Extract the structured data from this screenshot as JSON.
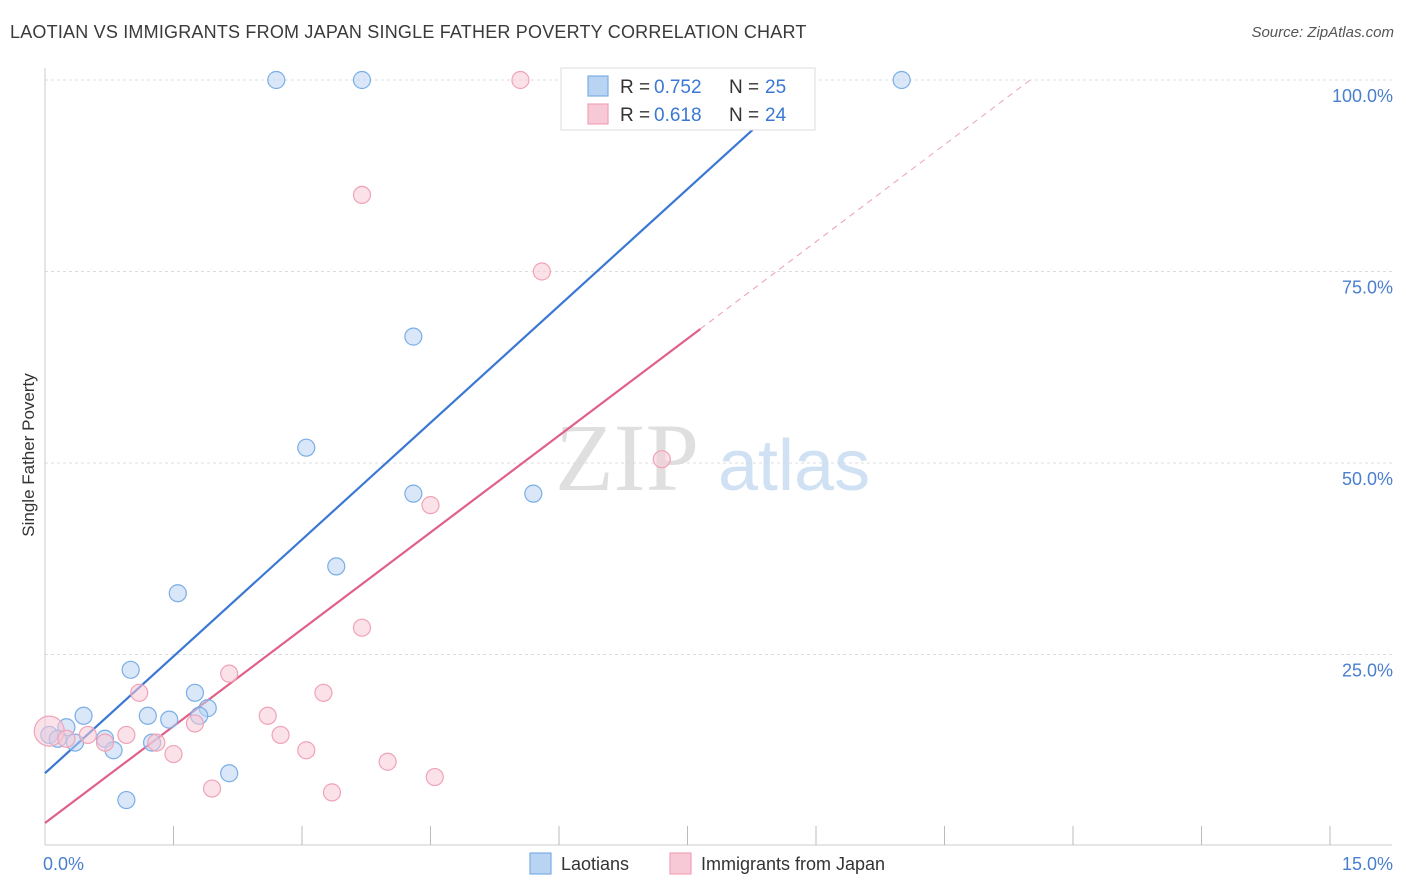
{
  "chart_data": {
    "type": "scatter",
    "title": "LAOTIAN VS IMMIGRANTS FROM JAPAN SINGLE FATHER POVERTY CORRELATION CHART",
    "source": "Source: ZipAtlas.com",
    "xlabel": "",
    "ylabel": "Single Father Poverty",
    "xlim": [
      0,
      15
    ],
    "ylim": [
      0,
      100
    ],
    "x_tick_labels": {
      "min": "0.0%",
      "max": "15.0%"
    },
    "y_ticks": [
      {
        "value": 25,
        "label": "25.0%"
      },
      {
        "value": 50,
        "label": "50.0%"
      },
      {
        "value": 75,
        "label": "75.0%"
      },
      {
        "value": 100,
        "label": "100.0%"
      }
    ],
    "watermark": {
      "part1": "ZIP",
      "part2": "atlas"
    },
    "legend_stats": [
      {
        "r_label": "R =",
        "r_value": "0.752",
        "n_label": "N =",
        "n_value": "25"
      },
      {
        "r_label": "R =",
        "r_value": "0.618",
        "n_label": "N =",
        "n_value": "24"
      }
    ],
    "series": [
      {
        "name": "Laotians",
        "color": "#7aaee6",
        "fill": "#b9d3f2",
        "line_color": "#3a78d4",
        "trend": {
          "x0": 0,
          "y0": 9.5,
          "x1": 8.9,
          "y1": 100
        },
        "points": [
          [
            0.05,
            14.5
          ],
          [
            0.25,
            15.5
          ],
          [
            0.45,
            17
          ],
          [
            0.35,
            13.5
          ],
          [
            0.7,
            14
          ],
          [
            0.8,
            12.5
          ],
          [
            1.0,
            23
          ],
          [
            1.2,
            17
          ],
          [
            1.45,
            16.5
          ],
          [
            1.25,
            13.5
          ],
          [
            1.55,
            33
          ],
          [
            1.75,
            20
          ],
          [
            1.9,
            18
          ],
          [
            2.15,
            9.5
          ],
          [
            0.95,
            6
          ],
          [
            2.7,
            100
          ],
          [
            3.7,
            100
          ],
          [
            10.0,
            100
          ],
          [
            3.05,
            52
          ],
          [
            3.4,
            36.5
          ],
          [
            4.3,
            46
          ],
          [
            5.7,
            46
          ],
          [
            4.3,
            66.5
          ],
          [
            1.8,
            17
          ],
          [
            0.15,
            14
          ]
        ]
      },
      {
        "name": "Immigrants from Japan",
        "color": "#f0a3b8",
        "fill": "#f7c8d5",
        "line_color": "#e0608a",
        "trend": {
          "x0": 0,
          "y0": 3,
          "x1": 7.65,
          "y1": 67.5
        },
        "trend_dashed": {
          "x0": 7.65,
          "y0": 67.5,
          "x1": 11.5,
          "y1": 100
        },
        "points": [
          [
            0.05,
            15
          ],
          [
            0.5,
            14.5
          ],
          [
            0.95,
            14.5
          ],
          [
            1.1,
            20
          ],
          [
            1.3,
            13.5
          ],
          [
            1.5,
            12
          ],
          [
            1.75,
            16
          ],
          [
            1.95,
            7.5
          ],
          [
            2.15,
            22.5
          ],
          [
            2.6,
            17
          ],
          [
            2.75,
            14.5
          ],
          [
            3.05,
            12.5
          ],
          [
            3.25,
            20
          ],
          [
            3.35,
            7
          ],
          [
            3.7,
            28.5
          ],
          [
            4.0,
            11
          ],
          [
            4.5,
            44.5
          ],
          [
            4.55,
            9
          ],
          [
            5.55,
            100
          ],
          [
            3.7,
            85
          ],
          [
            5.8,
            75
          ],
          [
            7.2,
            50.5
          ],
          [
            0.25,
            14
          ],
          [
            0.7,
            13.5
          ]
        ]
      }
    ]
  }
}
